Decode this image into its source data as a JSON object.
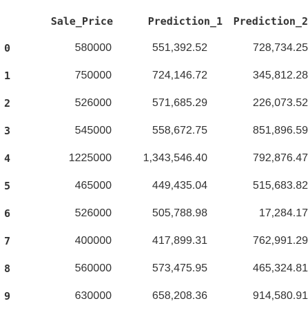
{
  "table": {
    "index_header": "",
    "columns": [
      "Sale_Price",
      "Prediction_1",
      "Prediction_2"
    ],
    "rows": [
      {
        "index": "0",
        "cells": [
          "580000",
          "551,392.52",
          "728,734.25"
        ]
      },
      {
        "index": "1",
        "cells": [
          "750000",
          "724,146.72",
          "345,812.28"
        ]
      },
      {
        "index": "2",
        "cells": [
          "526000",
          "571,685.29",
          "226,073.52"
        ]
      },
      {
        "index": "3",
        "cells": [
          "545000",
          "558,672.75",
          "851,896.59"
        ]
      },
      {
        "index": "4",
        "cells": [
          "1225000",
          "1,343,546.40",
          "792,876.47"
        ]
      },
      {
        "index": "5",
        "cells": [
          "465000",
          "449,435.04",
          "515,683.82"
        ]
      },
      {
        "index": "6",
        "cells": [
          "526000",
          "505,788.98",
          "17,284.17"
        ]
      },
      {
        "index": "7",
        "cells": [
          "400000",
          "417,899.31",
          "762,991.29"
        ]
      },
      {
        "index": "8",
        "cells": [
          "560000",
          "573,475.95",
          "465,324.81"
        ]
      },
      {
        "index": "9",
        "cells": [
          "630000",
          "658,208.36",
          "914,580.91"
        ]
      }
    ]
  }
}
